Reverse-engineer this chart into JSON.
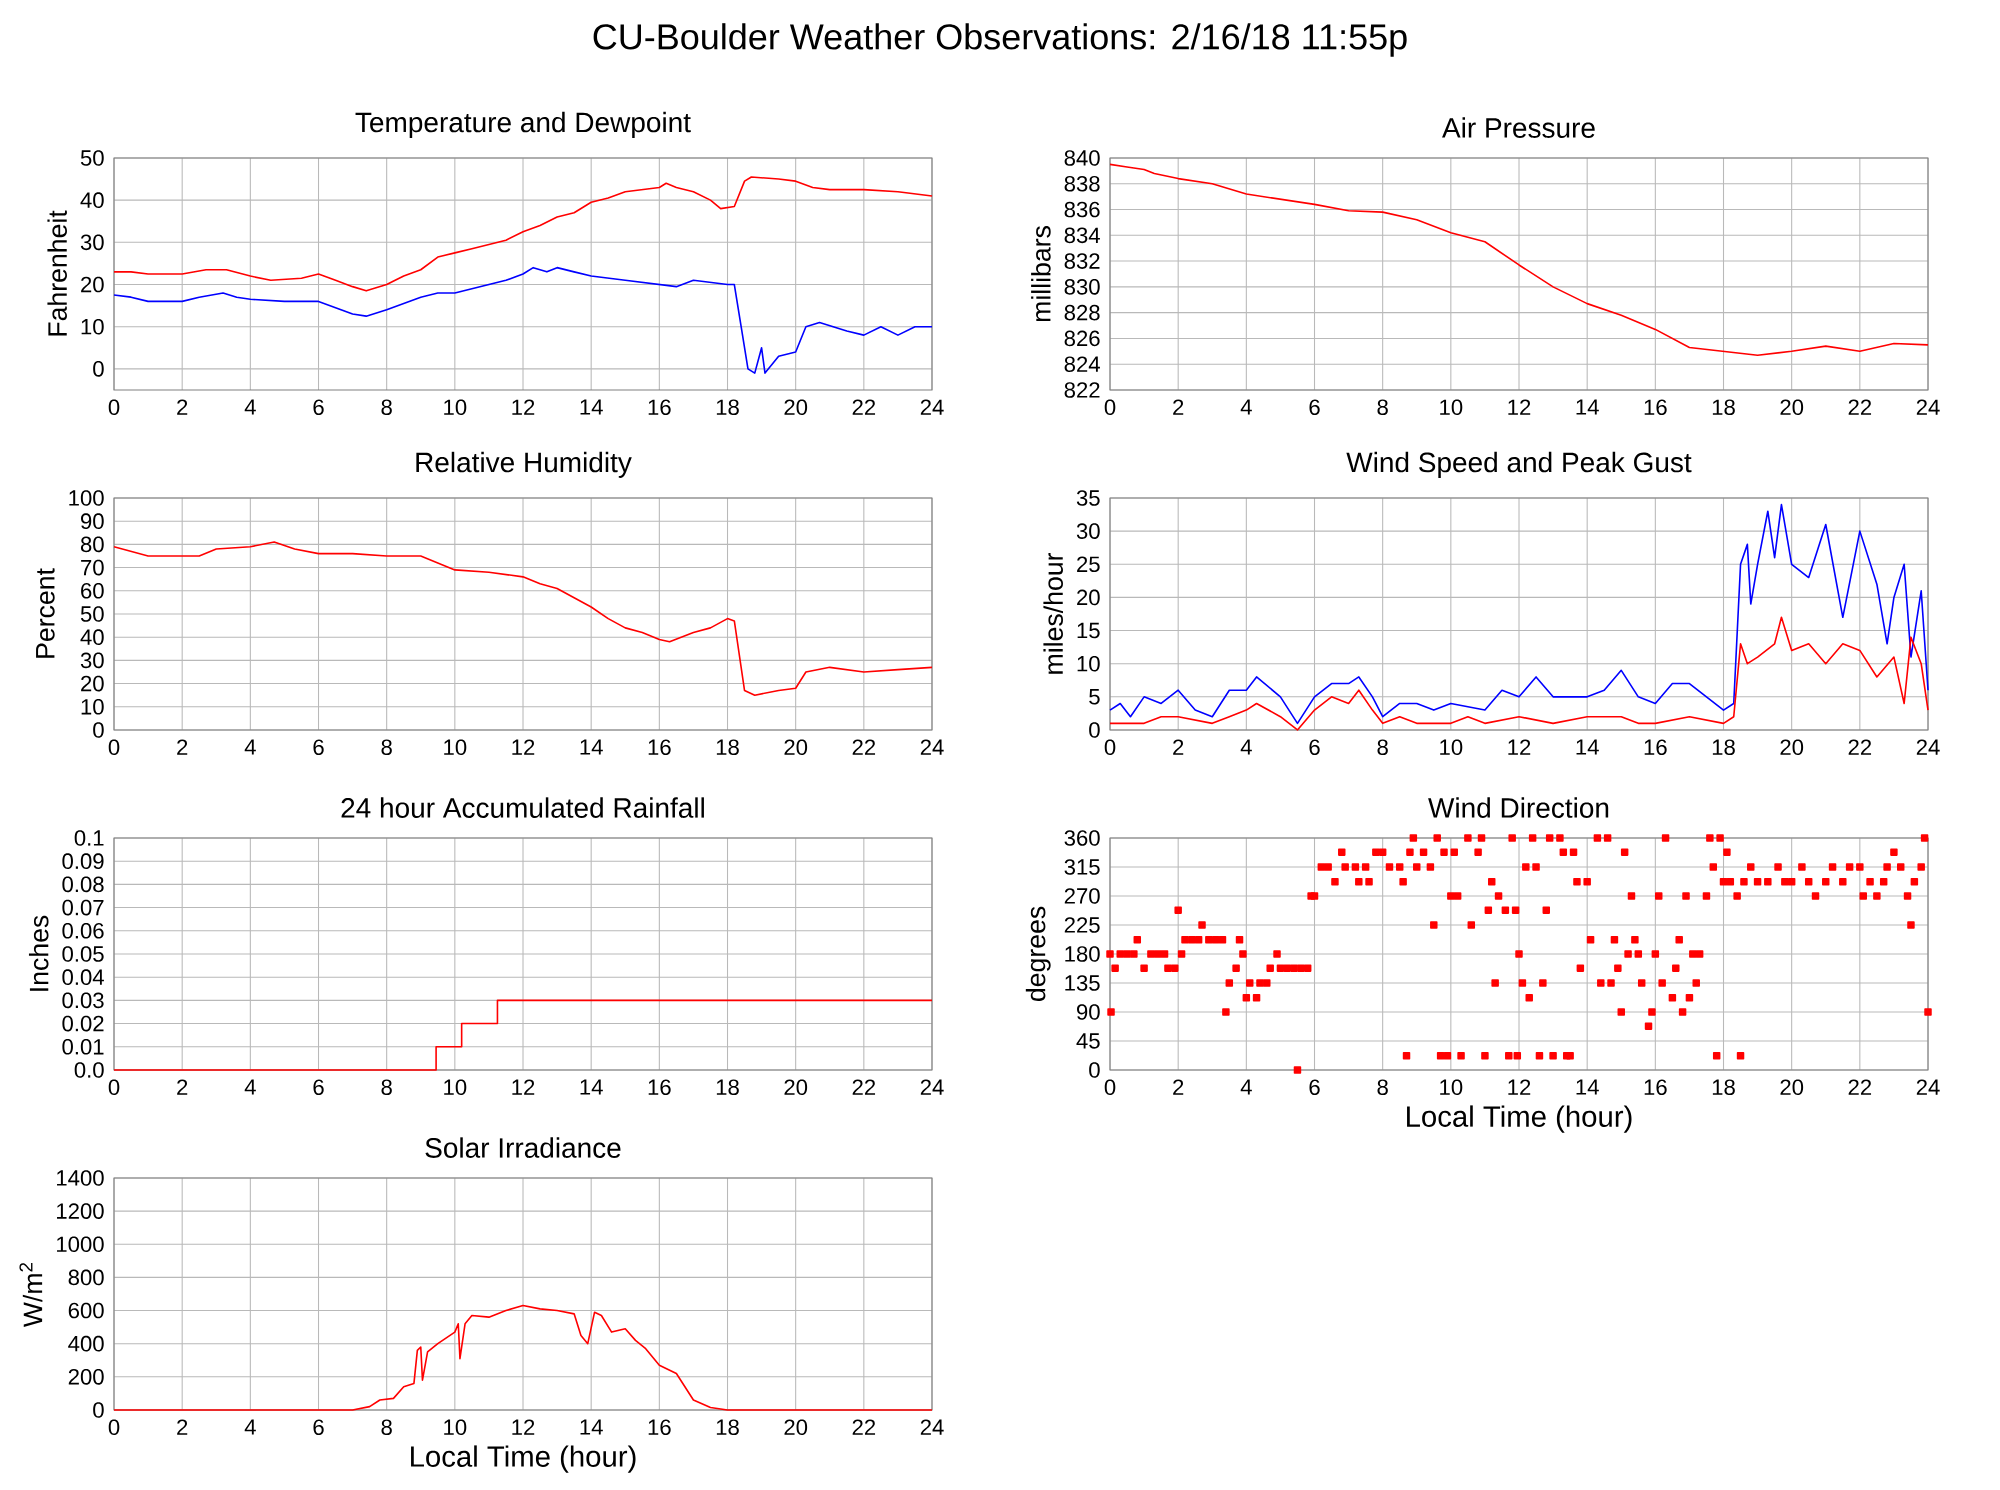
{
  "chart_data": [
    {
      "type": "other",
      "title": "CU-Boulder Weather Observations: 2/16/18 11:55p"
    },
    {
      "type": "line",
      "title": "Temperature and Dewpoint",
      "ylabel": "Fahrenheit",
      "xlim": [
        0,
        24
      ],
      "ylim": [
        -5,
        50
      ],
      "xticks": [
        0,
        2,
        4,
        6,
        8,
        10,
        12,
        14,
        16,
        18,
        20,
        22,
        24
      ],
      "yticks": [
        0,
        10,
        20,
        30,
        40,
        50
      ],
      "grid": true,
      "series": [
        {
          "color": "#ff0000",
          "x": [
            0,
            0.5,
            1,
            2,
            2.7,
            3.3,
            4,
            4.6,
            5.5,
            6,
            6.5,
            7,
            7.4,
            8,
            8.5,
            9,
            9.5,
            10,
            10.5,
            11,
            11.5,
            12,
            12.5,
            13,
            13.5,
            14,
            14.5,
            15,
            15.5,
            16,
            16.2,
            16.5,
            17,
            17.5,
            17.8,
            18.2,
            18.5,
            18.7,
            19.5,
            20,
            20.5,
            21,
            22,
            23,
            24
          ],
          "values": [
            23,
            23,
            22.5,
            22.5,
            23.5,
            23.5,
            22,
            21,
            21.5,
            22.5,
            21,
            19.5,
            18.5,
            20,
            22,
            23.5,
            26.5,
            27.5,
            28.5,
            29.5,
            30.5,
            32.5,
            34,
            36,
            37,
            39.5,
            40.5,
            42,
            42.5,
            43,
            44,
            43,
            42,
            40,
            38,
            38.5,
            44.5,
            45.5,
            45,
            44.5,
            43,
            42.5,
            42.5,
            42,
            41
          ]
        },
        {
          "color": "#0000ff",
          "x": [
            0,
            0.5,
            1,
            2,
            2.5,
            3.2,
            3.6,
            4,
            5,
            6,
            6.5,
            7,
            7.4,
            8,
            9,
            9.5,
            10,
            10.5,
            11,
            11.5,
            12,
            12.3,
            12.7,
            13,
            13.5,
            14,
            15,
            16,
            16.5,
            17,
            18,
            18.2,
            18.4,
            18.6,
            18.8,
            19,
            19.1,
            19.5,
            20,
            20.3,
            20.7,
            21.5,
            22,
            22.5,
            23,
            23.5,
            24
          ],
          "values": [
            17.5,
            17,
            16,
            16,
            17,
            18,
            17,
            16.5,
            16,
            16,
            14.5,
            13,
            12.5,
            14,
            17,
            18,
            18,
            19,
            20,
            21,
            22.5,
            24,
            23,
            24,
            23,
            22,
            21,
            20,
            19.5,
            21,
            20,
            20,
            10,
            0,
            -1,
            5,
            -1,
            3,
            4,
            10,
            11,
            9,
            8,
            10,
            8,
            10,
            10
          ]
        }
      ]
    },
    {
      "type": "line",
      "title": "Air Pressure",
      "ylabel": "millibars",
      "xlim": [
        0,
        24
      ],
      "ylim": [
        822,
        840
      ],
      "xticks": [
        0,
        2,
        4,
        6,
        8,
        10,
        12,
        14,
        16,
        18,
        20,
        22,
        24
      ],
      "yticks": [
        822,
        824,
        826,
        828,
        830,
        832,
        834,
        836,
        838,
        840
      ],
      "grid": true,
      "series": [
        {
          "color": "#ff0000",
          "x": [
            0,
            0.5,
            1,
            1.3,
            2,
            3,
            4,
            5,
            6,
            7,
            8,
            9,
            10,
            11,
            12,
            13,
            14,
            15,
            16,
            17,
            18,
            19,
            20,
            21,
            22,
            23,
            24
          ],
          "values": [
            839.5,
            839.3,
            839.1,
            838.8,
            838.4,
            838,
            837.2,
            836.8,
            836.4,
            835.9,
            835.8,
            835.2,
            834.2,
            833.5,
            831.7,
            830,
            828.7,
            827.8,
            826.7,
            825.3,
            825,
            824.7,
            825,
            825.4,
            825,
            825.6,
            825.5
          ]
        }
      ]
    },
    {
      "type": "line",
      "title": "Relative Humidity",
      "ylabel": "Percent",
      "xlim": [
        0,
        24
      ],
      "ylim": [
        0,
        100
      ],
      "xticks": [
        0,
        2,
        4,
        6,
        8,
        10,
        12,
        14,
        16,
        18,
        20,
        22,
        24
      ],
      "yticks": [
        0,
        10,
        20,
        30,
        40,
        50,
        60,
        70,
        80,
        90,
        100
      ],
      "grid": true,
      "series": [
        {
          "color": "#ff0000",
          "x": [
            0,
            0.5,
            1,
            2,
            2.5,
            3,
            4,
            4.7,
            5.3,
            6,
            7,
            8,
            9,
            9.5,
            10,
            11,
            11.5,
            12,
            12.5,
            13,
            13.5,
            14,
            14.5,
            15,
            15.5,
            16,
            16.3,
            17,
            17.5,
            18,
            18.2,
            18.5,
            18.8,
            19.5,
            20,
            20.3,
            21,
            22,
            23,
            24
          ],
          "values": [
            79,
            77,
            75,
            75,
            75,
            78,
            79,
            81,
            78,
            76,
            76,
            75,
            75,
            72,
            69,
            68,
            67,
            66,
            63,
            61,
            57,
            53,
            48,
            44,
            42,
            39,
            38,
            42,
            44,
            48,
            47,
            17,
            15,
            17,
            18,
            25,
            27,
            25,
            26,
            27
          ]
        }
      ]
    },
    {
      "type": "line",
      "title": "Wind Speed and Peak Gust",
      "ylabel": "miles/hour",
      "xlim": [
        0,
        24
      ],
      "ylim": [
        0,
        35
      ],
      "xticks": [
        0,
        2,
        4,
        6,
        8,
        10,
        12,
        14,
        16,
        18,
        20,
        22,
        24
      ],
      "yticks": [
        0,
        5,
        10,
        15,
        20,
        25,
        30,
        35
      ],
      "grid": true,
      "series": [
        {
          "color": "#0000ff",
          "x": [
            0,
            0.3,
            0.6,
            1,
            1.5,
            2,
            2.5,
            3,
            3.5,
            4,
            4.3,
            5,
            5.5,
            6,
            6.5,
            7,
            7.3,
            7.7,
            8,
            8.5,
            9,
            9.5,
            10,
            11,
            11.5,
            12,
            12.5,
            13,
            14,
            14.5,
            15,
            15.5,
            16,
            16.5,
            17,
            17.5,
            18,
            18.3,
            18.5,
            18.7,
            18.8,
            19,
            19.3,
            19.5,
            19.7,
            20,
            20.5,
            21,
            21.5,
            22,
            22.5,
            22.8,
            23,
            23.3,
            23.5,
            23.8,
            24
          ],
          "values": [
            3,
            4,
            2,
            5,
            4,
            6,
            3,
            2,
            6,
            6,
            8,
            5,
            1,
            5,
            7,
            7,
            8,
            5,
            2,
            4,
            4,
            3,
            4,
            3,
            6,
            5,
            8,
            5,
            5,
            6,
            9,
            5,
            4,
            7,
            7,
            5,
            3,
            4,
            25,
            28,
            19,
            25,
            33,
            26,
            34,
            25,
            23,
            31,
            17,
            30,
            22,
            13,
            20,
            25,
            11,
            21,
            6
          ]
        },
        {
          "color": "#ff0000",
          "x": [
            0,
            1,
            1.5,
            2,
            3,
            3.5,
            4,
            4.3,
            5,
            5.5,
            6,
            6.5,
            7,
            7.3,
            7.7,
            8,
            8.5,
            9,
            10,
            10.5,
            11,
            12,
            13,
            14,
            15,
            15.5,
            16,
            17,
            18,
            18.3,
            18.5,
            18.7,
            19,
            19.5,
            19.7,
            20,
            20.5,
            21,
            21.5,
            22,
            22.5,
            23,
            23.3,
            23.5,
            23.8,
            24
          ],
          "values": [
            1,
            1,
            2,
            2,
            1,
            2,
            3,
            4,
            2,
            0,
            3,
            5,
            4,
            6,
            3,
            1,
            2,
            1,
            1,
            2,
            1,
            2,
            1,
            2,
            2,
            1,
            1,
            2,
            1,
            2,
            13,
            10,
            11,
            13,
            17,
            12,
            13,
            10,
            13,
            12,
            8,
            11,
            4,
            14,
            10,
            3
          ]
        }
      ]
    },
    {
      "type": "step",
      "title": "24 hour Accumulated Rainfall",
      "ylabel": "Inches",
      "xlim": [
        0,
        24
      ],
      "ylim": [
        0,
        0.1
      ],
      "xticks": [
        0,
        2,
        4,
        6,
        8,
        10,
        12,
        14,
        16,
        18,
        20,
        22,
        24
      ],
      "yticks": [
        {
          "value": 0,
          "label": "0.0"
        },
        0.01,
        0.02,
        0.03,
        0.04,
        0.05,
        0.06,
        0.07,
        0.08,
        0.09,
        0.1
      ],
      "grid": true,
      "series": [
        {
          "color": "#ff0000",
          "x": [
            0,
            9.45,
            10.2,
            11.25,
            24
          ],
          "values": [
            0,
            0.01,
            0.02,
            0.03,
            0.03
          ]
        }
      ]
    },
    {
      "type": "scatter",
      "title": "Wind Direction",
      "xlabel": "Local Time (hour)",
      "ylabel": "degrees",
      "xlim": [
        0,
        24
      ],
      "ylim": [
        0,
        360
      ],
      "xticks": [
        0,
        2,
        4,
        6,
        8,
        10,
        12,
        14,
        16,
        18,
        20,
        22,
        24
      ],
      "yticks": [
        0,
        45,
        90,
        135,
        180,
        225,
        270,
        315,
        360
      ],
      "grid": true,
      "marker": "square",
      "series": [
        {
          "color": "#ff0000",
          "x": [
            0,
            0.03,
            0.15,
            0.3,
            0.5,
            0.7,
            0.8,
            1,
            1.2,
            1.4,
            1.6,
            1.7,
            1.9,
            2,
            2.1,
            2.2,
            2.4,
            2.6,
            2.7,
            2.9,
            3.1,
            3.3,
            3.4,
            3.5,
            3.7,
            3.8,
            3.9,
            4,
            4.1,
            4.3,
            4.4,
            4.6,
            4.7,
            4.9,
            5,
            5.2,
            5.4,
            5.5,
            5.6,
            5.8,
            5.9,
            6,
            6.2,
            6.4,
            6.6,
            6.8,
            6.9,
            7.2,
            7.3,
            7.5,
            7.6,
            7.8,
            8,
            8.2,
            8.5,
            8.6,
            8.7,
            8.8,
            8.9,
            9,
            9.2,
            9.4,
            9.5,
            9.6,
            9.7,
            9.8,
            9.9,
            10,
            10.1,
            10.2,
            10.3,
            10.5,
            10.6,
            10.8,
            10.9,
            11,
            11.1,
            11.2,
            11.3,
            11.4,
            11.6,
            11.7,
            11.8,
            11.9,
            11.95,
            12,
            12.1,
            12.2,
            12.3,
            12.4,
            12.5,
            12.6,
            12.7,
            12.8,
            12.9,
            13,
            13.2,
            13.3,
            13.4,
            13.5,
            13.6,
            13.7,
            13.8,
            14,
            14.1,
            14.3,
            14.4,
            14.6,
            14.7,
            14.8,
            14.9,
            15,
            15.1,
            15.2,
            15.3,
            15.4,
            15.5,
            15.6,
            15.8,
            15.9,
            16,
            16.1,
            16.2,
            16.3,
            16.5,
            16.6,
            16.7,
            16.8,
            16.9,
            17,
            17.1,
            17.2,
            17.3,
            17.5,
            17.6,
            17.7,
            17.8,
            17.9,
            18,
            18.1,
            18.2,
            18.4,
            18.5,
            18.6,
            18.8,
            19,
            19.3,
            19.6,
            19.8,
            20,
            20.3,
            20.5,
            20.7,
            21,
            21.2,
            21.5,
            21.7,
            22,
            22.1,
            22.3,
            22.5,
            22.7,
            22.8,
            23,
            23.2,
            23.4,
            23.5,
            23.6,
            23.8,
            23.9,
            24
          ],
          "values": [
            180,
            90,
            158,
            180,
            180,
            180,
            202,
            158,
            180,
            180,
            180,
            158,
            158,
            248,
            180,
            202,
            202,
            202,
            225,
            202,
            202,
            202,
            90,
            135,
            158,
            202,
            180,
            112,
            135,
            112,
            135,
            135,
            158,
            180,
            158,
            158,
            158,
            0,
            158,
            158,
            270,
            270,
            315,
            315,
            292,
            338,
            315,
            315,
            292,
            315,
            292,
            338,
            338,
            315,
            315,
            292,
            22,
            338,
            360,
            315,
            338,
            315,
            225,
            360,
            22,
            338,
            22,
            270,
            338,
            270,
            22,
            360,
            225,
            338,
            360,
            22,
            248,
            292,
            135,
            270,
            248,
            22,
            360,
            248,
            22,
            180,
            135,
            315,
            112,
            360,
            315,
            22,
            135,
            248,
            360,
            22,
            360,
            338,
            22,
            22,
            338,
            292,
            158,
            292,
            202,
            360,
            135,
            360,
            135,
            202,
            158,
            90,
            338,
            180,
            270,
            202,
            180,
            135,
            68,
            90,
            180,
            270,
            135,
            360,
            112,
            158,
            202,
            90,
            270,
            112,
            180,
            135,
            180,
            270,
            360,
            315,
            22,
            360,
            292,
            338,
            292,
            270,
            22,
            292,
            315,
            292,
            292,
            315,
            292,
            292,
            315,
            292,
            270,
            292,
            315,
            292,
            315,
            315,
            270,
            292,
            270,
            292,
            315,
            338,
            315,
            270,
            225,
            292,
            315,
            360,
            90
          ]
        }
      ]
    },
    {
      "type": "line",
      "title": "Solar Irradiance",
      "xlabel": "Local Time (hour)",
      "ylabel": "W/m$^{2}$",
      "xlim": [
        0,
        24
      ],
      "ylim": [
        0,
        1400
      ],
      "xticks": [
        0,
        2,
        4,
        6,
        8,
        10,
        12,
        14,
        16,
        18,
        20,
        22,
        24
      ],
      "yticks": [
        0,
        200,
        400,
        600,
        800,
        1000,
        1200,
        1400
      ],
      "grid": true,
      "series": [
        {
          "color": "#ff0000",
          "x": [
            0,
            7,
            7.5,
            7.8,
            8.2,
            8.5,
            8.8,
            8.9,
            9,
            9.05,
            9.2,
            9.5,
            10,
            10.1,
            10.15,
            10.3,
            10.5,
            11,
            11.5,
            12,
            12.5,
            13,
            13.5,
            13.7,
            13.9,
            14.1,
            14.3,
            14.6,
            15,
            15.3,
            15.6,
            16,
            16.5,
            17,
            17.5,
            18,
            24
          ],
          "values": [
            0,
            0,
            20,
            60,
            70,
            140,
            160,
            360,
            380,
            180,
            350,
            400,
            470,
            520,
            310,
            520,
            570,
            560,
            600,
            630,
            610,
            600,
            580,
            450,
            400,
            590,
            570,
            470,
            490,
            420,
            370,
            270,
            220,
            60,
            15,
            0,
            0
          ]
        }
      ]
    }
  ]
}
